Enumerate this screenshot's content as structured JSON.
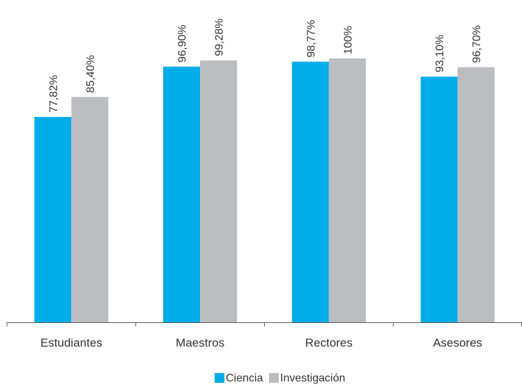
{
  "chart_data": {
    "type": "bar",
    "categories": [
      "Estudiantes",
      "Maestros",
      "Rectores",
      "Asesores"
    ],
    "series": [
      {
        "name": "Ciencia",
        "values": [
          77.82,
          96.9,
          98.77,
          93.1
        ],
        "labels": [
          "77,82%",
          "96,90%",
          "98,77%",
          "93,10%"
        ],
        "color": "#00ade8"
      },
      {
        "name": "Investigación",
        "values": [
          85.4,
          99.28,
          100,
          96.7
        ],
        "labels": [
          "85,40%",
          "99,28%",
          "100%",
          "96,70%"
        ],
        "color": "#bcbdc0"
      }
    ],
    "ylim": [
      0,
      100
    ],
    "grid": false,
    "legend_position": "bottom-center",
    "axis_color": "#595959"
  }
}
